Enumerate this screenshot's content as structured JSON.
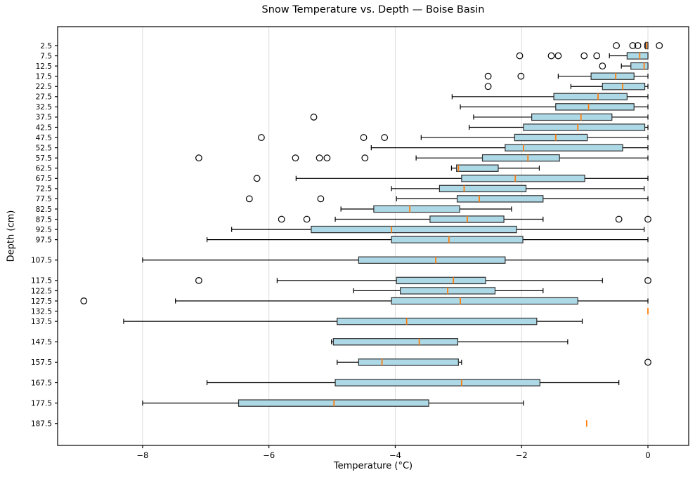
{
  "chart_data": {
    "type": "boxplot",
    "orientation": "horizontal",
    "title": "Snow Temperature vs. Depth — Boise Basin",
    "xlabel": "Temperature (°C)",
    "ylabel": "Depth (cm)",
    "xlim": [
      -9.345,
      0.645
    ],
    "ylim_depth": [
      -6.77,
      198.23
    ],
    "xticks": [
      -8,
      -6,
      -4,
      -2,
      0
    ],
    "xtick_labels": [
      "−8",
      "−6",
      "−4",
      "−2",
      "0"
    ],
    "grid": "vertical-only",
    "legend": "none",
    "colors": {
      "box_fill": "#ADD8E6",
      "box_edge": "#2F2F2F",
      "median": "#FF7F0E",
      "whisker": "#000000",
      "flier_edge": "#000000",
      "grid": "#DCDCDC",
      "spine": "#000000",
      "background": "#FFFFFF"
    },
    "rows": [
      {
        "depth": 2.5,
        "label": "2.5",
        "whislo": -0.05,
        "q1": -0.04,
        "med": -0.02,
        "q3": 0.0,
        "whishi": 0.0,
        "fliers": [
          -0.5,
          -0.24,
          -0.16,
          0.18
        ]
      },
      {
        "depth": 7.5,
        "label": "7.5",
        "whislo": -0.61,
        "q1": -0.33,
        "med": -0.13,
        "q3": 0.0,
        "whishi": 0.0,
        "fliers": [
          -2.03,
          -1.53,
          -1.42,
          -1.01,
          -0.81
        ]
      },
      {
        "depth": 12.5,
        "label": "12.5",
        "whislo": -0.42,
        "q1": -0.27,
        "med": -0.06,
        "q3": 0.0,
        "whishi": 0.0,
        "fliers": [
          -0.72
        ]
      },
      {
        "depth": 17.5,
        "label": "17.5",
        "whislo": -1.42,
        "q1": -0.9,
        "med": -0.51,
        "q3": -0.22,
        "whishi": 0.0,
        "fliers": [
          -2.53,
          -2.01
        ]
      },
      {
        "depth": 22.5,
        "label": "22.5",
        "whislo": -1.22,
        "q1": -0.72,
        "med": -0.4,
        "q3": -0.05,
        "whishi": 0.0,
        "fliers": [
          -2.53
        ]
      },
      {
        "depth": 27.5,
        "label": "27.5",
        "whislo": -3.1,
        "q1": -1.49,
        "med": -0.79,
        "q3": -0.33,
        "whishi": 0.0,
        "fliers": []
      },
      {
        "depth": 32.5,
        "label": "32.5",
        "whislo": -2.97,
        "q1": -1.46,
        "med": -0.94,
        "q3": -0.22,
        "whishi": 0.0,
        "fliers": []
      },
      {
        "depth": 37.5,
        "label": "37.5",
        "whislo": -2.76,
        "q1": -1.84,
        "med": -1.06,
        "q3": -0.57,
        "whishi": 0.0,
        "fliers": [
          -5.29
        ]
      },
      {
        "depth": 42.5,
        "label": "42.5",
        "whislo": -2.83,
        "q1": -1.97,
        "med": -1.11,
        "q3": -0.05,
        "whishi": 0.0,
        "fliers": []
      },
      {
        "depth": 47.5,
        "label": "47.5",
        "whislo": -3.59,
        "q1": -2.11,
        "med": -1.46,
        "q3": -0.96,
        "whishi": 0.0,
        "fliers": [
          -6.12,
          -4.5,
          -4.17
        ]
      },
      {
        "depth": 52.5,
        "label": "52.5",
        "whislo": -4.38,
        "q1": -2.26,
        "med": -1.97,
        "q3": -0.4,
        "whishi": 0.0,
        "fliers": []
      },
      {
        "depth": 57.5,
        "label": "57.5",
        "whislo": -3.67,
        "q1": -2.62,
        "med": -1.9,
        "q3": -1.4,
        "whishi": 0.0,
        "fliers": [
          -7.11,
          -5.58,
          -5.2,
          -5.08,
          -4.48
        ]
      },
      {
        "depth": 62.5,
        "label": "62.5",
        "whislo": -3.11,
        "q1": -3.03,
        "med": -3.0,
        "q3": -2.37,
        "whishi": -1.72,
        "fliers": []
      },
      {
        "depth": 67.5,
        "label": "67.5",
        "whislo": -5.57,
        "q1": -2.95,
        "med": -2.1,
        "q3": -1.0,
        "whishi": 0.0,
        "fliers": [
          -6.19
        ]
      },
      {
        "depth": 72.5,
        "label": "72.5",
        "whislo": -4.06,
        "q1": -3.3,
        "med": -2.91,
        "q3": -1.93,
        "whishi": -0.06,
        "fliers": []
      },
      {
        "depth": 77.5,
        "label": "77.5",
        "whislo": -3.98,
        "q1": -3.02,
        "med": -2.67,
        "q3": -1.66,
        "whishi": 0.0,
        "fliers": [
          -6.31,
          -5.18
        ]
      },
      {
        "depth": 82.5,
        "label": "82.5",
        "whislo": -4.86,
        "q1": -4.34,
        "med": -3.77,
        "q3": -2.98,
        "whishi": -2.16,
        "fliers": []
      },
      {
        "depth": 87.5,
        "label": "87.5",
        "whislo": -4.95,
        "q1": -3.45,
        "med": -2.86,
        "q3": -2.28,
        "whishi": -1.66,
        "fliers": [
          -5.8,
          -5.4,
          -0.46,
          0.0
        ]
      },
      {
        "depth": 92.5,
        "label": "92.5",
        "whislo": -6.59,
        "q1": -5.33,
        "med": -4.06,
        "q3": -2.08,
        "whishi": -0.06,
        "fliers": []
      },
      {
        "depth": 97.5,
        "label": "97.5",
        "whislo": -6.98,
        "q1": -4.06,
        "med": -3.15,
        "q3": -1.98,
        "whishi": 0.0,
        "fliers": []
      },
      {
        "depth": 107.5,
        "label": "107.5",
        "whislo": -8.0,
        "q1": -4.58,
        "med": -3.36,
        "q3": -2.26,
        "whishi": 0.0,
        "fliers": []
      },
      {
        "depth": 117.5,
        "label": "117.5",
        "whislo": -5.87,
        "q1": -3.98,
        "med": -3.08,
        "q3": -2.57,
        "whishi": -0.72,
        "fliers": [
          -7.11,
          0.0
        ]
      },
      {
        "depth": 122.5,
        "label": "122.5",
        "whislo": -4.66,
        "q1": -3.92,
        "med": -3.17,
        "q3": -2.42,
        "whishi": -1.66,
        "fliers": []
      },
      {
        "depth": 127.5,
        "label": "127.5",
        "whislo": -7.48,
        "q1": -4.06,
        "med": -2.97,
        "q3": -1.11,
        "whishi": 0.0,
        "fliers": [
          -8.93
        ]
      },
      {
        "depth": 132.5,
        "label": "132.5",
        "whislo": 0.0,
        "q1": 0.0,
        "med": 0.0,
        "q3": 0.0,
        "whishi": 0.0,
        "fliers": []
      },
      {
        "depth": 137.5,
        "label": "137.5",
        "whislo": -8.3,
        "q1": -4.92,
        "med": -3.82,
        "q3": -1.76,
        "whishi": -1.04,
        "fliers": []
      },
      {
        "depth": 147.5,
        "label": "147.5",
        "whislo": -5.01,
        "q1": -4.98,
        "med": -3.62,
        "q3": -3.01,
        "whishi": -1.27,
        "fliers": []
      },
      {
        "depth": 157.5,
        "label": "157.5",
        "whislo": -4.92,
        "q1": -4.58,
        "med": -4.21,
        "q3": -3.0,
        "whishi": -2.95,
        "fliers": [
          0.0
        ]
      },
      {
        "depth": 167.5,
        "label": "167.5",
        "whislo": -6.98,
        "q1": -4.95,
        "med": -2.95,
        "q3": -1.71,
        "whishi": -0.46,
        "fliers": []
      },
      {
        "depth": 177.5,
        "label": "177.5",
        "whislo": -8.0,
        "q1": -6.48,
        "med": -4.97,
        "q3": -3.47,
        "whishi": -1.97,
        "fliers": []
      },
      {
        "depth": 187.5,
        "label": "187.5",
        "whislo": -0.97,
        "q1": -0.97,
        "med": -0.97,
        "q3": -0.97,
        "whishi": -0.97,
        "fliers": []
      }
    ]
  }
}
